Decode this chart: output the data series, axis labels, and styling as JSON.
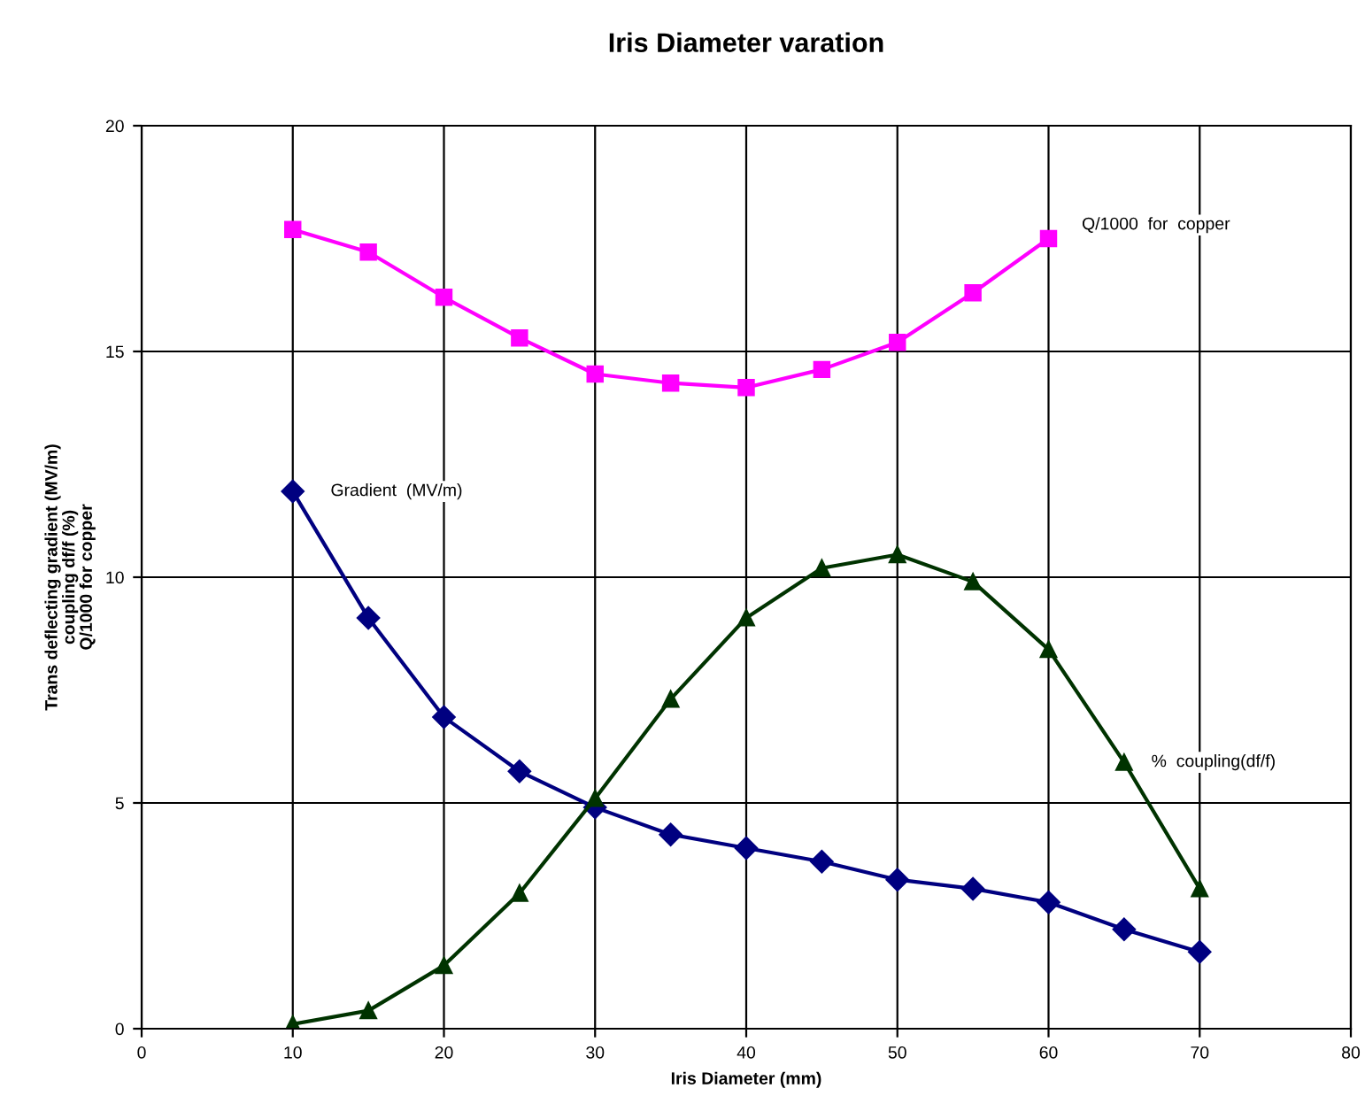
{
  "chart_data": {
    "type": "line",
    "title": "Iris Diameter varation",
    "xlabel": "Iris Diameter (mm)",
    "ylabel": "Trans deflecting gradient (MV/m)\ncoupling df/f (%)\nQ/1000 for copper",
    "x": [
      10,
      15,
      20,
      25,
      30,
      35,
      40,
      45,
      50,
      55,
      60,
      65,
      70
    ],
    "series": [
      {
        "name": "Q/1000  for  copper",
        "color": "#ff00ff",
        "marker": "square",
        "x": [
          10,
          15,
          20,
          25,
          30,
          35,
          40,
          45,
          50,
          55,
          60
        ],
        "values": [
          17.7,
          17.2,
          16.2,
          15.3,
          14.5,
          14.3,
          14.2,
          14.6,
          15.2,
          16.3,
          17.5
        ]
      },
      {
        "name": "Gradient  (MV/m)",
        "color": "#000080",
        "marker": "diamond",
        "values": [
          11.9,
          9.1,
          6.9,
          5.7,
          4.9,
          4.3,
          4.0,
          3.7,
          3.3,
          3.1,
          2.8,
          2.2,
          1.7
        ]
      },
      {
        "name": "%  coupling(df/f)",
        "color": "#003300",
        "marker": "triangle",
        "values": [
          0.1,
          0.4,
          1.4,
          3.0,
          5.1,
          7.3,
          9.1,
          10.2,
          10.5,
          9.9,
          8.4,
          5.9,
          3.1
        ]
      }
    ],
    "xlim": [
      0,
      80
    ],
    "xticks": [
      0,
      10,
      20,
      30,
      40,
      50,
      60,
      70,
      80
    ],
    "ylim": [
      0,
      20
    ],
    "yticks": [
      0,
      5,
      10,
      15,
      20
    ],
    "grid": true,
    "legend": false
  }
}
